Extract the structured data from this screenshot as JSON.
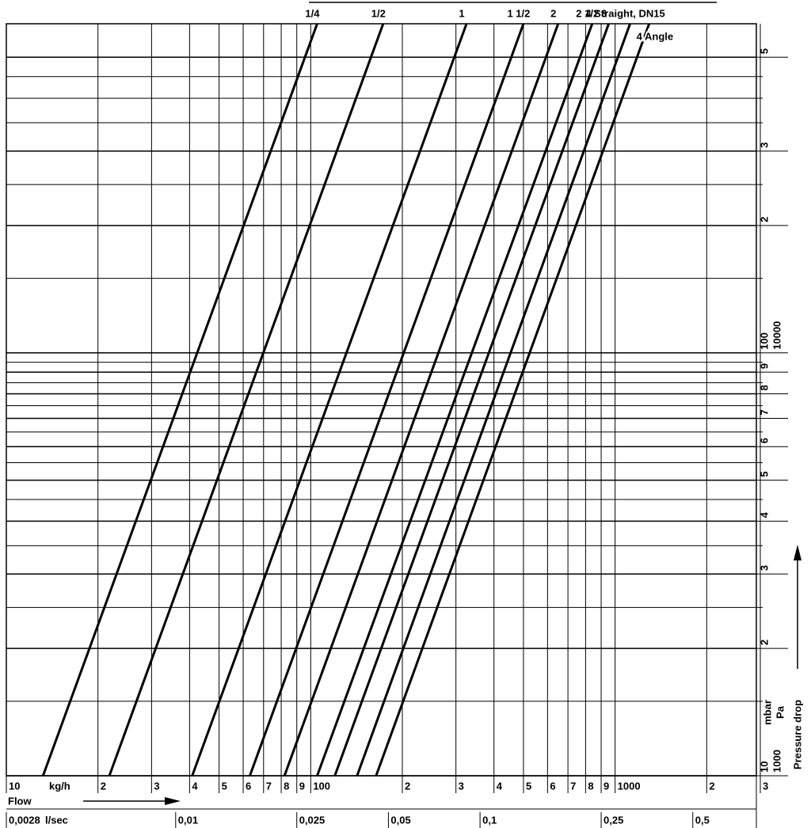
{
  "chart_data": {
    "type": "line",
    "log_x": true,
    "log_y": true,
    "x_label": "kg/h",
    "x_title": "Flow",
    "x2_label": "l/sec",
    "y_label": "mbar",
    "y_label_pa": "Pa",
    "y_title": "Pressure drop",
    "xlim": [
      10,
      3000
    ],
    "ylim": [
      10,
      600
    ],
    "xticks": [
      10,
      {
        "value": 20,
        "label": "2"
      },
      {
        "value": 30,
        "label": "3"
      },
      {
        "value": 40,
        "label": "4"
      },
      {
        "value": 50,
        "label": "5"
      },
      {
        "value": 60,
        "label": "6"
      },
      {
        "value": 70,
        "label": "7"
      },
      {
        "value": 80,
        "label": "8"
      },
      {
        "value": 90,
        "label": "9"
      },
      100,
      {
        "value": 200,
        "label": "2"
      },
      {
        "value": 300,
        "label": "3"
      },
      {
        "value": 400,
        "label": "4"
      },
      {
        "value": 500,
        "label": "5"
      },
      {
        "value": 600,
        "label": "6"
      },
      {
        "value": 700,
        "label": "7"
      },
      {
        "value": 800,
        "label": "8"
      },
      {
        "value": 900,
        "label": "9"
      },
      1000,
      {
        "value": 2000,
        "label": "2"
      },
      {
        "value": 3000,
        "label": "3"
      }
    ],
    "x2ticks": [
      {
        "value": 10,
        "label": "0,0028"
      },
      {
        "value": 36,
        "label": "0,01"
      },
      {
        "value": 90,
        "label": "0,025"
      },
      {
        "value": 180,
        "label": "0,05"
      },
      {
        "value": 360,
        "label": "0,1"
      },
      {
        "value": 900,
        "label": "0,25"
      },
      {
        "value": 1800,
        "label": "0,5"
      }
    ],
    "yticks": [
      10,
      {
        "value": 20,
        "label": "2"
      },
      {
        "value": 30,
        "label": "3"
      },
      {
        "value": 40,
        "label": "4"
      },
      {
        "value": 50,
        "label": "5"
      },
      {
        "value": 60,
        "label": "6"
      },
      {
        "value": 70,
        "label": "7"
      },
      {
        "value": 80,
        "label": "8"
      },
      {
        "value": 90,
        "label": "9"
      },
      100,
      {
        "value": 200,
        "label": "2"
      },
      {
        "value": 300,
        "label": "3"
      },
      {
        "value": 500,
        "label": "5"
      }
    ],
    "y_pa_ticks": [
      {
        "value": 10,
        "label": "1000"
      },
      {
        "value": 100,
        "label": "10000"
      }
    ],
    "y_minor_ticks": [
      15,
      25,
      35,
      45,
      55,
      65,
      75,
      85,
      95,
      150,
      250,
      350,
      400,
      450
    ],
    "grid": true,
    "color": "#000000",
    "series": [
      {
        "name": "1/4",
        "x": [
          13.2,
          105
        ],
        "values": [
          10,
          600
        ]
      },
      {
        "name": "1/2",
        "x": [
          21.8,
          173
        ],
        "values": [
          10,
          600
        ]
      },
      {
        "name": "1",
        "x": [
          40.8,
          325
        ],
        "values": [
          10,
          600
        ]
      },
      {
        "name": "1 1/2",
        "x": [
          63.1,
          500
        ],
        "values": [
          10,
          600
        ]
      },
      {
        "name": "2",
        "x": [
          82,
          650
        ],
        "values": [
          10,
          600
        ]
      },
      {
        "name": "2 1/2",
        "x": [
          105,
          841
        ],
        "values": [
          10,
          600
        ]
      },
      {
        "name": "3",
        "x": [
          120,
          953
        ],
        "values": [
          10,
          600
        ]
      },
      {
        "name": "4 Straight, DN15",
        "x": [
          142,
          1120
        ],
        "values": [
          10,
          600
        ]
      },
      {
        "name": "4 Angle",
        "x": [
          164,
          1294
        ],
        "values": [
          10,
          600
        ]
      }
    ]
  }
}
